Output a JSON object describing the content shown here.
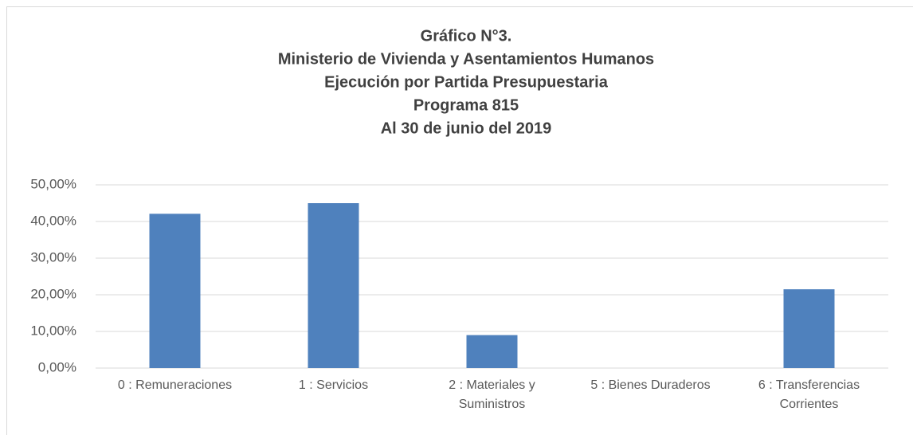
{
  "chart_data": {
    "type": "bar",
    "title": [
      "Gráfico N°3.",
      "Ministerio de Vivienda y Asentamientos Humanos",
      "Ejecución por Partida Presupuestaria",
      "Programa 815",
      "Al 30 de junio del 2019"
    ],
    "categories": [
      "0 : Remuneraciones",
      "1 : Servicios",
      "2 : Materiales y Suministros",
      "5 : Bienes Duraderos",
      "6 : Transferencias Corrientes"
    ],
    "values": [
      42.1,
      45.0,
      9.0,
      0,
      21.5
    ],
    "color": "#4f81bd",
    "ylim": [
      0,
      50
    ],
    "yticks": [
      {
        "value": 0,
        "label": "0,00%"
      },
      {
        "value": 10,
        "label": "10,00%"
      },
      {
        "value": 20,
        "label": "20,00%"
      },
      {
        "value": 30,
        "label": "30,00%"
      },
      {
        "value": 40,
        "label": "40,00%"
      },
      {
        "value": 50,
        "label": "50,00%"
      }
    ],
    "grid": true
  }
}
